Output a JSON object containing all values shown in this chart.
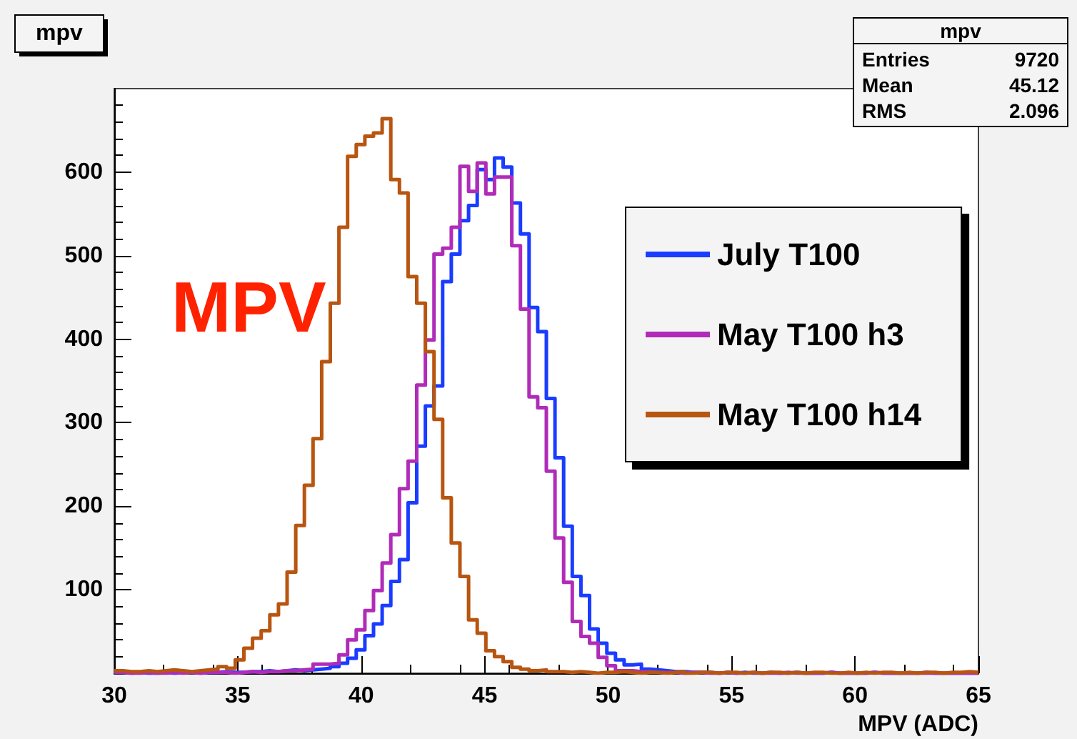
{
  "chart_data": {
    "type": "histogram",
    "title": "mpv",
    "xlabel": "MPV (ADC)",
    "bins": [
      30,
      30.35,
      30.7,
      31.05,
      31.4,
      31.75,
      32.1,
      32.45,
      32.8,
      33.15,
      33.5,
      33.85,
      34.2,
      34.55,
      34.9,
      35.25,
      35.6,
      35.95,
      36.3,
      36.65,
      37,
      37.35,
      37.7,
      38.05,
      38.4,
      38.75,
      39.1,
      39.45,
      39.8,
      40.15,
      40.5,
      40.85,
      41.2,
      41.55,
      41.9,
      42.25,
      42.6,
      42.95,
      43.3,
      43.65,
      44,
      44.35,
      44.7,
      45.05,
      45.4,
      45.75,
      46.1,
      46.45,
      46.8,
      47.15,
      47.5,
      47.85,
      48.2,
      48.55,
      48.9,
      49.25,
      49.6,
      49.95,
      50.3,
      50.65,
      51,
      51.35,
      51.7,
      52.05,
      52.4,
      52.75,
      53.1,
      53.45,
      53.8,
      54.15,
      54.5,
      54.85,
      55.2,
      55.55,
      55.9,
      56.25,
      56.6,
      56.95,
      57.3,
      57.65,
      58,
      58.35,
      58.7,
      59.05,
      59.4,
      59.75,
      60.1,
      60.45,
      60.8,
      61.15,
      61.5,
      61.85,
      62.2,
      62.55,
      62.9,
      63.25,
      63.6,
      63.95,
      64.3,
      64.65,
      65
    ],
    "series": [
      {
        "name": "July T100",
        "color": "#1a3cff",
        "values": [
          1,
          0,
          1,
          0,
          0,
          1,
          0,
          1,
          1,
          0,
          1,
          1,
          2,
          1,
          1,
          2,
          2,
          3,
          2,
          3,
          4,
          3,
          4,
          5,
          6,
          8,
          12,
          18,
          28,
          45,
          59,
          81,
          110,
          136,
          204,
          272,
          320,
          344,
          469,
          502,
          542,
          560,
          603,
          591,
          617,
          606,
          563,
          526,
          438,
          409,
          329,
          258,
          176,
          116,
          93,
          53,
          36,
          24,
          16,
          10,
          11,
          5,
          4,
          3,
          2,
          2,
          1,
          1,
          1,
          0,
          1,
          0,
          1,
          0,
          0,
          1,
          0,
          0,
          1,
          0,
          0,
          0,
          1,
          0,
          0,
          0,
          0,
          1,
          0,
          0,
          0,
          0,
          0,
          1,
          0,
          0,
          0,
          0,
          0,
          0
        ]
      },
      {
        "name": "May T100 h3",
        "color": "#b02cb8",
        "values": [
          1,
          0,
          0,
          1,
          0,
          0,
          1,
          0,
          1,
          0,
          1,
          1,
          1,
          0,
          1,
          2,
          1,
          2,
          2,
          3,
          3,
          4,
          5,
          11,
          11,
          12,
          22,
          40,
          52,
          75,
          99,
          132,
          166,
          221,
          254,
          345,
          399,
          502,
          509,
          534,
          607,
          577,
          611,
          574,
          594,
          594,
          512,
          436,
          331,
          318,
          242,
          162,
          109,
          62,
          44,
          36,
          19,
          9,
          3,
          3,
          2,
          2,
          1,
          1,
          1,
          0,
          1,
          1,
          0,
          0,
          1,
          0,
          0,
          1,
          0,
          0,
          0,
          1,
          0,
          0,
          0,
          0,
          1,
          0,
          0,
          0,
          0,
          1,
          0,
          0,
          0,
          0,
          0,
          0,
          0,
          0,
          0,
          0,
          0,
          0
        ]
      },
      {
        "name": "May T100 h14",
        "color": "#b85510",
        "values": [
          3,
          2,
          2,
          3,
          2,
          3,
          4,
          3,
          2,
          3,
          4,
          5,
          8,
          6,
          16,
          30,
          42,
          51,
          70,
          83,
          121,
          177,
          225,
          281,
          373,
          443,
          534,
          619,
          633,
          643,
          647,
          664,
          591,
          575,
          475,
          443,
          385,
          304,
          210,
          156,
          116,
          64,
          48,
          27,
          20,
          14,
          7,
          5,
          3,
          4,
          2,
          2,
          1,
          2,
          1,
          0,
          1,
          1,
          2,
          1,
          0,
          1,
          1,
          0,
          1,
          2,
          0,
          1,
          1,
          0,
          1,
          1,
          0,
          1,
          0,
          1,
          1,
          0,
          1,
          0,
          1,
          1,
          0,
          0,
          1,
          0,
          1,
          0,
          1,
          1,
          0,
          1,
          0,
          1,
          1,
          0,
          1,
          1,
          2,
          1
        ]
      }
    ],
    "xlim": [
      30,
      65
    ],
    "xticks": [
      30,
      35,
      40,
      45,
      50,
      55,
      60,
      65
    ],
    "ylim": [
      0,
      700
    ],
    "yticks": [
      100,
      200,
      300,
      400,
      500,
      600
    ],
    "legend": "right",
    "annotations": [
      "MPV",
      "mpv",
      "Entries 9720",
      "Mean 45.12",
      "RMS 2.096"
    ]
  }
}
